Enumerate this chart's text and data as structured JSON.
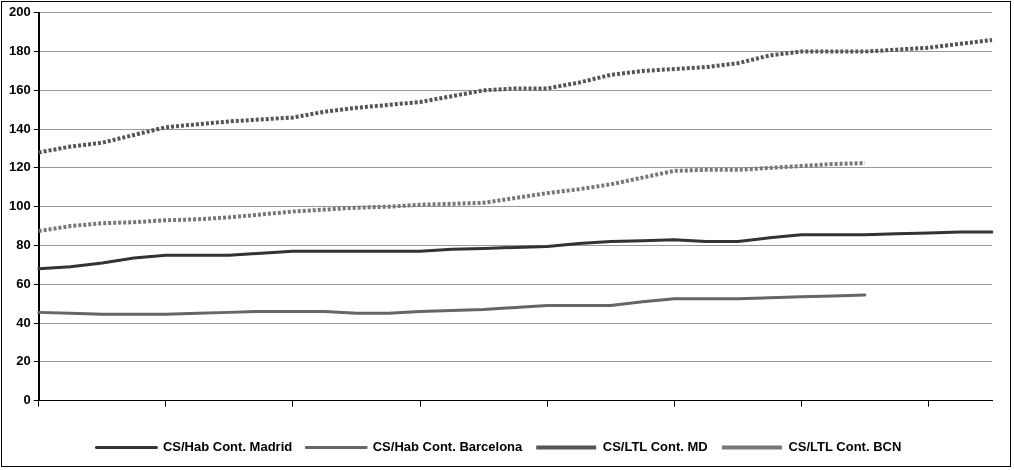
{
  "chart_data": {
    "type": "line",
    "categories": [
      null,
      null,
      null,
      null,
      null,
      null,
      null,
      null,
      null,
      null,
      null,
      null,
      null,
      null,
      null,
      null,
      null,
      null,
      null,
      null,
      null,
      null,
      null,
      null,
      null,
      null,
      null,
      null,
      null,
      null,
      null
    ],
    "series": [
      {
        "name": "CS/Hab Cont. Madrid",
        "color": "#333333",
        "line_style": "solid",
        "values": [
          68,
          69,
          71,
          73.5,
          75,
          75,
          75,
          76,
          77,
          77,
          77,
          77,
          77,
          78,
          78.5,
          79,
          79.5,
          81,
          82,
          82.5,
          83,
          82,
          82,
          84,
          85.5,
          85.5,
          85.5,
          86,
          86.5,
          87,
          87
        ]
      },
      {
        "name": "CS/Hab Cont. Barcelona",
        "color": "#666666",
        "line_style": "solid",
        "values": [
          45.5,
          45,
          44.5,
          44.5,
          44.5,
          45,
          45.5,
          46,
          46,
          46,
          45,
          45,
          46,
          46.5,
          47,
          48,
          49,
          49,
          49,
          51,
          52.5,
          52.5,
          52.5,
          53,
          53.5,
          54,
          54.5,
          null,
          null,
          null,
          null
        ]
      },
      {
        "name": "CS/LTL Cont. MD",
        "color": "#555555",
        "line_style": "dotted",
        "values": [
          128,
          131,
          133,
          137,
          141,
          142.5,
          144,
          145,
          146,
          149,
          151,
          152.5,
          154,
          157,
          160,
          161,
          161,
          164,
          168,
          170,
          171,
          172,
          174,
          178,
          180,
          180,
          180,
          181,
          182,
          184,
          186
        ]
      },
      {
        "name": "CS/LTL Cont. BCN",
        "color": "#777777",
        "line_style": "dotted",
        "values": [
          87.5,
          90,
          91.5,
          92,
          93,
          93.5,
          94.5,
          96,
          97.5,
          98.5,
          99.5,
          100,
          101,
          101.5,
          102,
          104.5,
          107,
          109,
          111.5,
          115,
          118.5,
          119,
          119,
          120,
          121,
          122,
          122.5,
          null,
          null,
          null,
          null
        ]
      }
    ],
    "ylim": [
      0,
      200
    ],
    "yticks": [
      0,
      20,
      40,
      60,
      80,
      100,
      120,
      140,
      160,
      180,
      200
    ],
    "grid": "y",
    "legend": "bottom",
    "marker": "none"
  }
}
